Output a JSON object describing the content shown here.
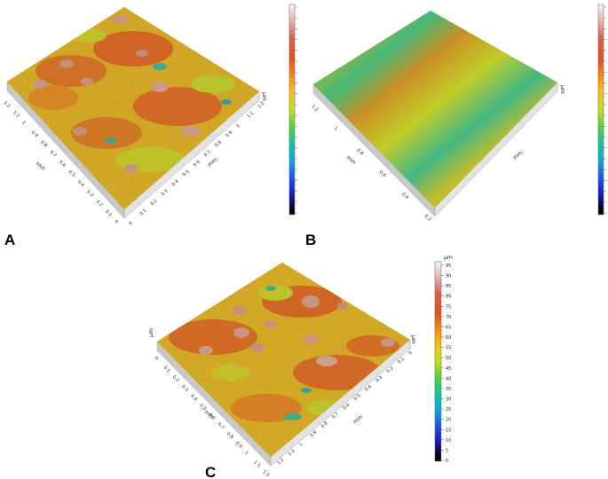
{
  "figure": {
    "panels": [
      {
        "label": "A",
        "surface": "rough-orange-yellow-with-pink-peaks"
      },
      {
        "label": "B",
        "surface": "yellow-orange-with-green-diagonal-stripes"
      },
      {
        "label": "C",
        "surface": "rough-orange-yellow-with-pink-peaks"
      }
    ],
    "colorbar": {
      "unit": "µm",
      "ticks": [
        "95",
        "90",
        "85",
        "80",
        "75",
        "70",
        "65",
        "60",
        "55",
        "50",
        "45",
        "40",
        "35",
        "30",
        "25",
        "20",
        "15",
        "10",
        "5",
        "0"
      ],
      "colors": [
        "#f4f4f4",
        "#e8b7b7",
        "#d8654b",
        "#e2511d",
        "#f07a12",
        "#f3b81c",
        "#d8de1c",
        "#8fd12a",
        "#25c66a",
        "#10b7c9",
        "#1d5ff0",
        "#1b1bd0",
        "#0a0a40",
        "#000000"
      ]
    },
    "axis_unit": "mm",
    "axis_ticks_A_left": [
      "1.2",
      "1.1",
      "1",
      "0.9",
      "0.8",
      "0.7",
      "0.6",
      "0.5",
      "0.4",
      "0.3",
      "0.2",
      "0.1",
      "0"
    ],
    "axis_ticks_A_right": [
      "0",
      "0.1",
      "0.2",
      "0.3",
      "0.4",
      "0.5",
      "0.6",
      "0.7",
      "0.8",
      "0.9",
      "1",
      "1.1",
      "1.2"
    ],
    "axis_ticks_B": [
      "1.2",
      "1",
      "0.8",
      "0.6",
      "0.4",
      "0.2"
    ],
    "axis_ticks_C_left": [
      "0",
      "0.1",
      "0.2",
      "0.3",
      "0.4",
      "0.5",
      "0.6",
      "0.7",
      "0.8",
      "0.9",
      "1",
      "1.1",
      "1.2"
    ],
    "axis_ticks_C_right": [
      "0",
      "0.1",
      "0.2",
      "0.3",
      "0.4",
      "0.5",
      "0.6",
      "0.7",
      "0.8",
      "0.9",
      "1",
      "1.1",
      "1.2"
    ]
  }
}
